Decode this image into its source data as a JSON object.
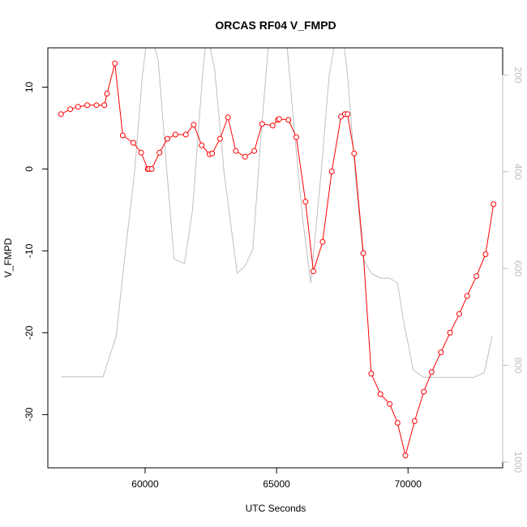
{
  "chart_data": {
    "type": "line",
    "title": "ORCAS RF04 V_FMPD",
    "xlabel": "UTC Seconds",
    "ylabel": "V_FMPD",
    "xlim": [
      56300,
      73600
    ],
    "ylim": [
      -36.5,
      14.8
    ],
    "x_ticks": [
      60000,
      65000,
      70000
    ],
    "x_tick_labels": [
      "60000",
      "65000",
      "70000"
    ],
    "y_ticks": [
      -30,
      -20,
      -10,
      0,
      10
    ],
    "y_tick_labels": [
      "-30",
      "-20",
      "-10",
      "0",
      "10"
    ],
    "y2lim": [
      1012,
      144
    ],
    "y2_ticks": [
      200,
      400,
      600,
      800,
      1000
    ],
    "y2_tick_labels": [
      "200",
      "400",
      "600",
      "800",
      "1000"
    ],
    "grid": false,
    "colors": {
      "primary": "#ff0000",
      "secondary": "#bfbfbf",
      "axes": "#000000"
    },
    "series": [
      {
        "axis": "left",
        "style": "line-markers",
        "x": [
          56800,
          57150,
          57450,
          57800,
          58150,
          58450,
          58550,
          58850,
          59150,
          59550,
          59850,
          60100,
          60150,
          60250,
          60550,
          60850,
          61150,
          61550,
          61850,
          62150,
          62450,
          62550,
          62850,
          63150,
          63450,
          63800,
          64150,
          64450,
          64850,
          65050,
          65100,
          65450,
          65750,
          66100,
          66400,
          66750,
          67100,
          67450,
          67600,
          67700,
          67950,
          68300,
          68600,
          68950,
          69300,
          69600,
          69900,
          70250,
          70600,
          70900,
          71250,
          71600,
          71950,
          72250,
          72600,
          72950,
          73250
        ],
        "values": [
          6.7,
          7.3,
          7.6,
          7.8,
          7.8,
          7.8,
          9.2,
          12.9,
          4.1,
          3.2,
          2.0,
          0.0,
          0.0,
          0.0,
          2.0,
          3.7,
          4.2,
          4.2,
          5.4,
          2.9,
          1.8,
          1.9,
          3.7,
          6.3,
          2.2,
          1.5,
          2.2,
          5.5,
          5.3,
          6.0,
          6.1,
          6.0,
          3.9,
          -4.0,
          -12.5,
          -8.9,
          -0.3,
          6.4,
          6.7,
          6.7,
          1.9,
          -10.3,
          -25.0,
          -27.5,
          -28.7,
          -31.0,
          -35.0,
          -30.8,
          -27.2,
          -24.8,
          -22.4,
          -20.0,
          -17.7,
          -15.5,
          -13.1,
          -10.4,
          -4.3
        ]
      },
      {
        "axis": "right",
        "style": "line",
        "x": [
          56800,
          57300,
          57800,
          58200,
          58400,
          58600,
          58900,
          59200,
          59600,
          59900,
          60100,
          60200,
          60500,
          60800,
          61100,
          61500,
          61800,
          62200,
          62350,
          62650,
          63000,
          63500,
          63800,
          64100,
          64400,
          64700,
          65000,
          65400,
          65700,
          66000,
          66300,
          66700,
          67000,
          67300,
          67500,
          67700,
          68000,
          68300,
          68600,
          68950,
          69300,
          69600,
          69800,
          70200,
          70600,
          71000,
          71500,
          72000,
          72500,
          72900,
          73200
        ],
        "values": [
          824,
          824,
          824,
          824,
          824,
          790,
          740,
          590,
          400,
          200,
          110,
          110,
          170,
          380,
          580,
          590,
          480,
          190,
          110,
          190,
          400,
          610,
          595,
          560,
          330,
          130,
          110,
          140,
          330,
          500,
          630,
          400,
          200,
          110,
          110,
          200,
          410,
          580,
          610,
          620,
          620,
          630,
          700,
          810,
          825,
          825,
          825,
          825,
          825,
          815,
          740
        ]
      }
    ]
  }
}
